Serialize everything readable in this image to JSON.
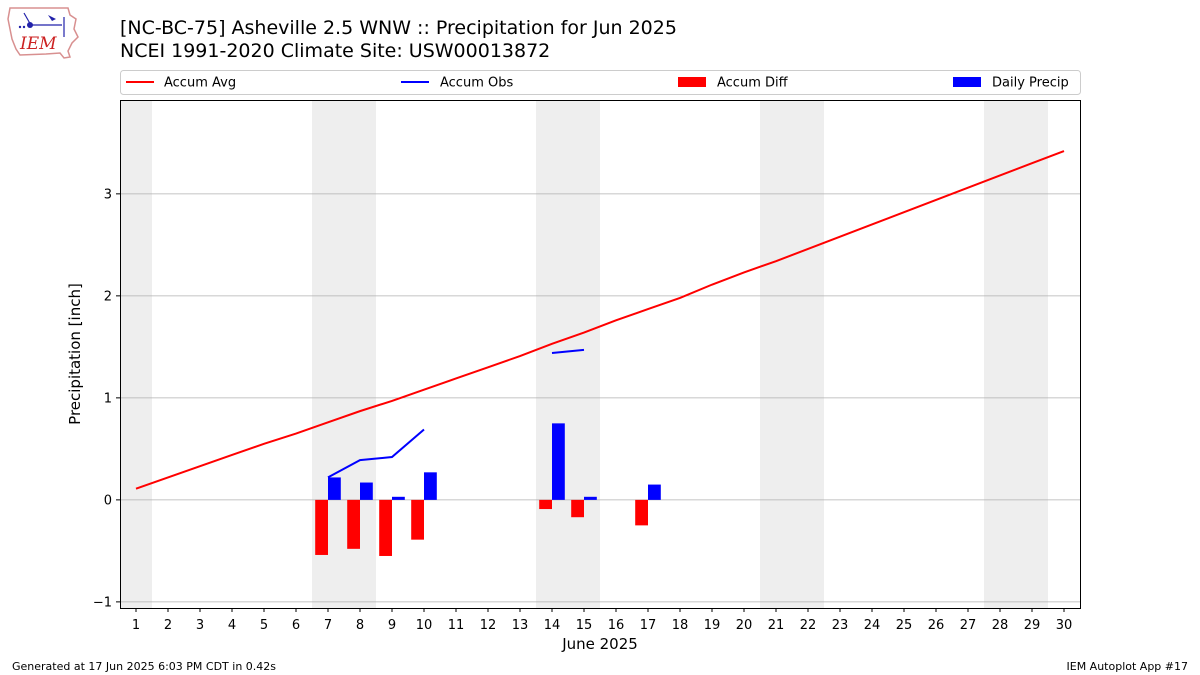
{
  "header": {
    "title_line1": "[NC-BC-75] Asheville 2.5 WNW :: Precipitation for Jun 2025",
    "title_line2": "NCEI 1991-2020 Climate Site: USW00013872",
    "logo_text": "IEM"
  },
  "footer": {
    "generated": "Generated at 17 Jun 2025 6:03 PM CDT in 0.42s",
    "app": "IEM Autoplot App #17"
  },
  "chart_data": {
    "type": "bar",
    "xlabel": "June 2025",
    "ylabel": "Precipitation [inch]",
    "xlim": [
      0.5,
      30.5
    ],
    "ylim": [
      -1.06,
      3.92
    ],
    "x_ticks": [
      1,
      2,
      3,
      4,
      5,
      6,
      7,
      8,
      9,
      10,
      11,
      12,
      13,
      14,
      15,
      16,
      17,
      18,
      19,
      20,
      21,
      22,
      23,
      24,
      25,
      26,
      27,
      28,
      29,
      30
    ],
    "y_ticks": [
      -1,
      0,
      1,
      2,
      3
    ],
    "grid": "horizontal",
    "legend_placement": "top",
    "weekend_shading": [
      [
        0.5,
        1.5
      ],
      [
        6.5,
        8.5
      ],
      [
        13.5,
        15.5
      ],
      [
        20.5,
        22.5
      ],
      [
        27.5,
        29.5
      ]
    ],
    "colors": {
      "accum_avg": "#ff0000",
      "accum_obs": "#0000ff",
      "accum_diff": "#ff0000",
      "daily_precip": "#0000ff",
      "weekend_shade": "#eeeeee",
      "grid": "#b0b0b0"
    },
    "legend": [
      "Accum Avg",
      "Accum Obs",
      "Accum Diff",
      "Daily Precip"
    ],
    "accum_avg": {
      "name": "Accum Avg",
      "x": [
        1,
        2,
        3,
        4,
        5,
        6,
        7,
        8,
        9,
        10,
        11,
        12,
        13,
        14,
        15,
        16,
        17,
        18,
        19,
        20,
        21,
        22,
        23,
        24,
        25,
        26,
        27,
        28,
        29,
        30
      ],
      "values": [
        0.11,
        0.22,
        0.33,
        0.44,
        0.55,
        0.65,
        0.76,
        0.87,
        0.97,
        1.08,
        1.19,
        1.3,
        1.41,
        1.53,
        1.64,
        1.76,
        1.87,
        1.98,
        2.11,
        2.23,
        2.34,
        2.46,
        2.58,
        2.7,
        2.82,
        2.94,
        3.06,
        3.18,
        3.3,
        3.42
      ]
    },
    "accum_obs_segments": [
      {
        "x": [
          7,
          8,
          9,
          10
        ],
        "values": [
          0.22,
          0.39,
          0.42,
          0.69
        ]
      },
      {
        "x": [
          14,
          15
        ],
        "values": [
          1.44,
          1.47
        ]
      }
    ],
    "accum_diff": {
      "name": "Accum Diff",
      "x": [
        7,
        8,
        9,
        10,
        14,
        15,
        17
      ],
      "values": [
        -0.54,
        -0.48,
        -0.55,
        -0.39,
        -0.09,
        -0.17,
        -0.25
      ]
    },
    "daily_precip": {
      "name": "Daily Precip",
      "x": [
        7,
        8,
        9,
        10,
        14,
        15,
        17
      ],
      "values": [
        0.22,
        0.17,
        0.03,
        0.27,
        0.75,
        0.03,
        0.15
      ]
    }
  }
}
